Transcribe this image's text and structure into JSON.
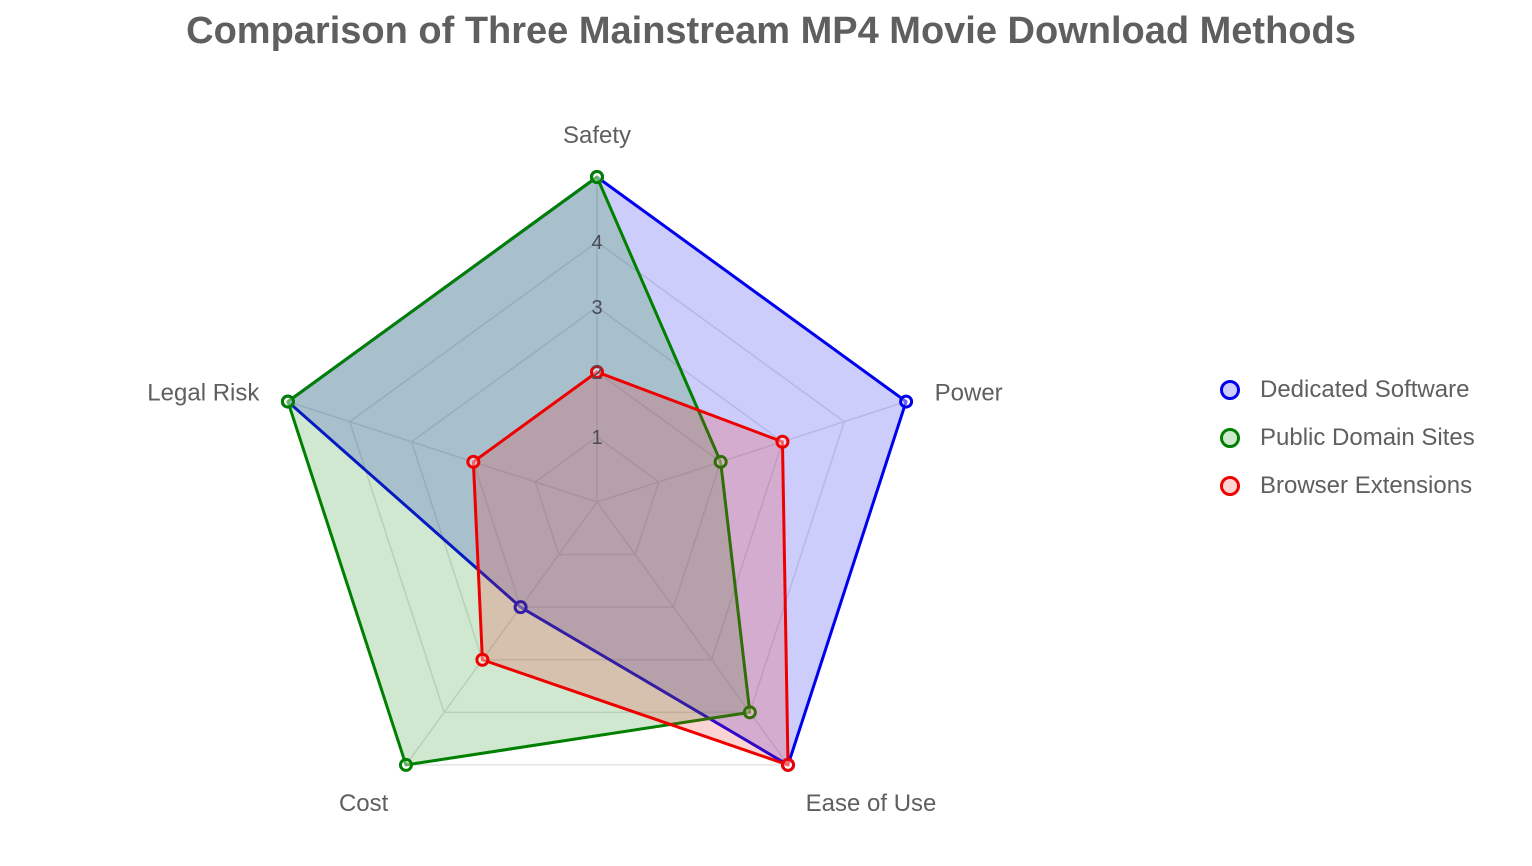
{
  "chart_data": {
    "type": "radar",
    "title": "Comparison of Three Mainstream MP4 Movie Download Methods",
    "axes": [
      "Safety",
      "Power",
      "Ease of Use",
      "Cost",
      "Legal Risk"
    ],
    "radial_range": [
      0,
      5
    ],
    "radial_ticks": [
      1,
      2,
      3,
      4
    ],
    "grid": true,
    "legend_position": "right",
    "series": [
      {
        "name": "Dedicated Software",
        "color": "#0000ee",
        "fill": "rgba(60,60,240,0.26)",
        "values": [
          5,
          5,
          5,
          2,
          5
        ]
      },
      {
        "name": "Public Domain Sites",
        "color": "#008000",
        "fill": "rgba(20,140,20,0.20)",
        "values": [
          5,
          2,
          4,
          5,
          5
        ]
      },
      {
        "name": "Browser Extensions",
        "color": "#ee0000",
        "fill": "rgba(240,40,40,0.20)",
        "values": [
          2,
          3,
          5,
          3,
          2
        ]
      }
    ]
  }
}
